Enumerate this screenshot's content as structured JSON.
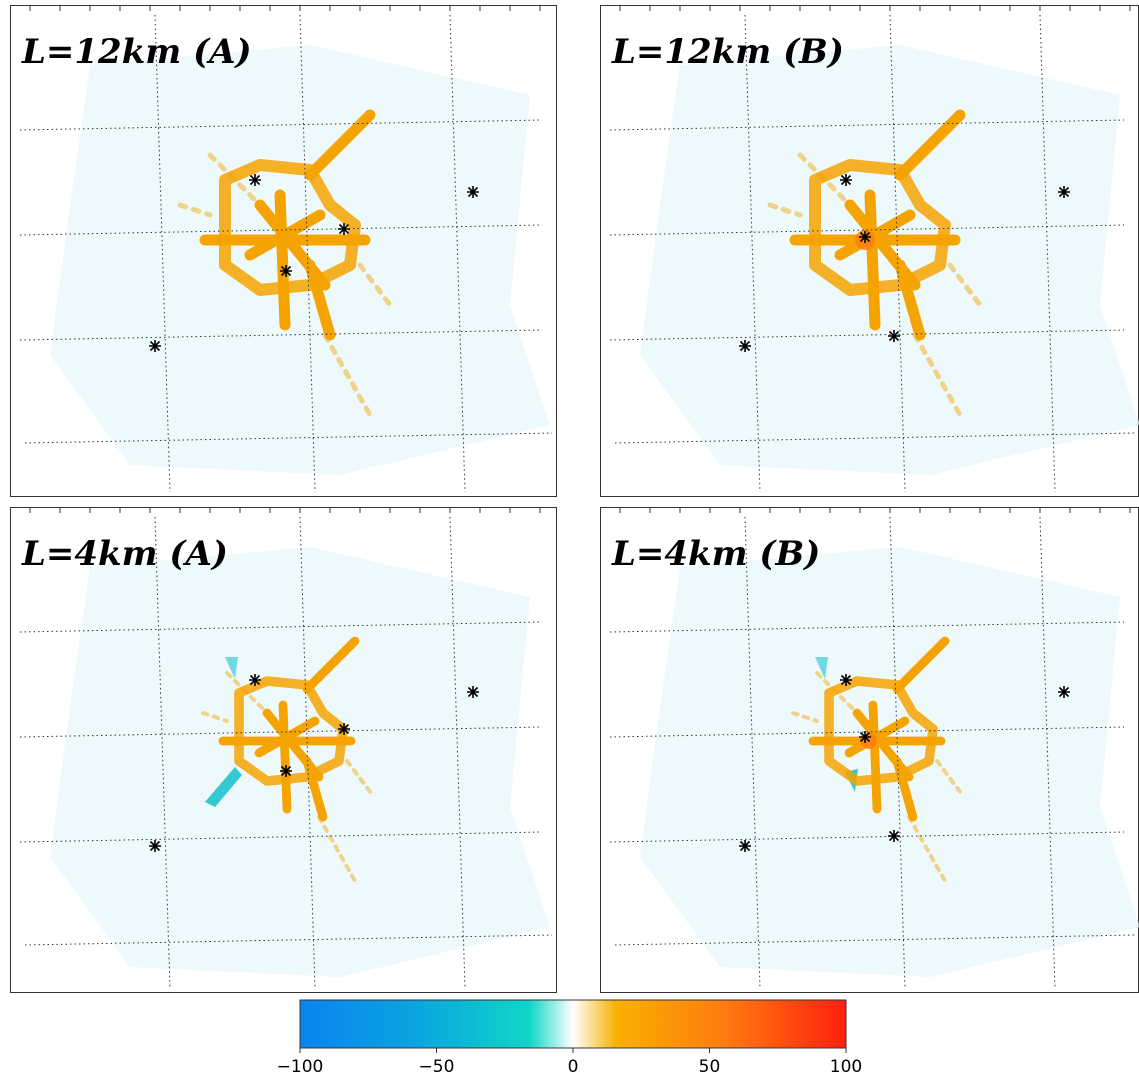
{
  "panels": [
    {
      "label": "L=12km (A)"
    },
    {
      "label": "L=12km (B)"
    },
    {
      "label": "L=4km (A)"
    },
    {
      "label": "L=4km (B)"
    }
  ],
  "colorbar": {
    "range": [
      -100,
      100
    ],
    "ticks": [
      {
        "value": -100,
        "label": "−100"
      },
      {
        "value": -50,
        "label": "−50"
      },
      0,
      50,
      100
    ]
  }
}
